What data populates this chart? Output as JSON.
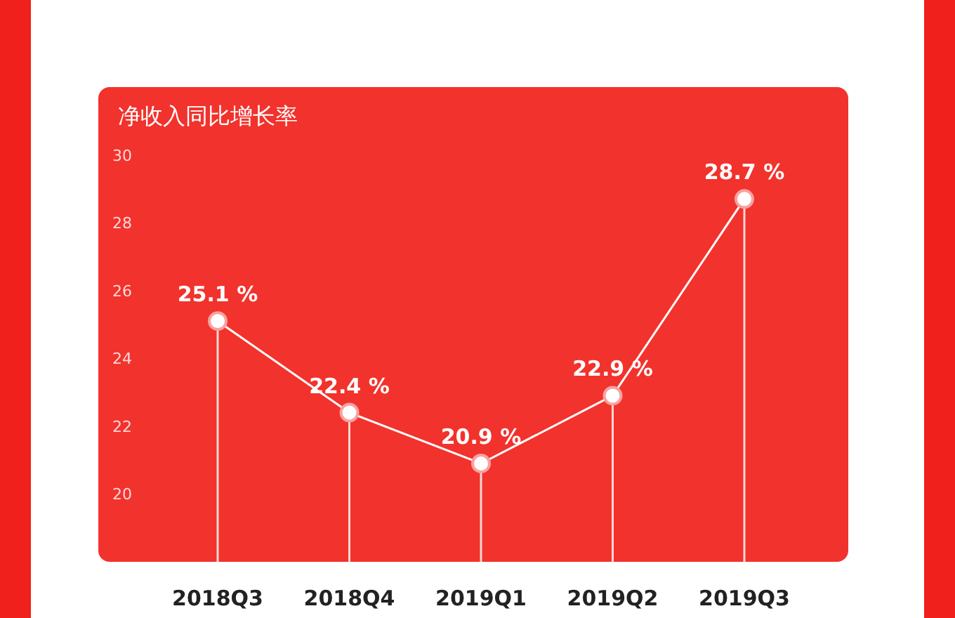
{
  "chart_data": {
    "type": "line",
    "title": "净收入同比增长率",
    "categories": [
      "2018Q3",
      "2018Q4",
      "2019Q1",
      "2019Q2",
      "2019Q3"
    ],
    "values": [
      25.1,
      22.4,
      20.9,
      22.9,
      28.7
    ],
    "value_labels": [
      "25.1 %",
      "22.4 %",
      "20.9 %",
      "22.9 %",
      "28.7 %"
    ],
    "color": "#ffffff",
    "marker": "circle",
    "line_style": "solid",
    "ylim": [
      18,
      32
    ],
    "yticks": [
      20,
      22,
      24,
      26,
      28,
      30
    ]
  }
}
